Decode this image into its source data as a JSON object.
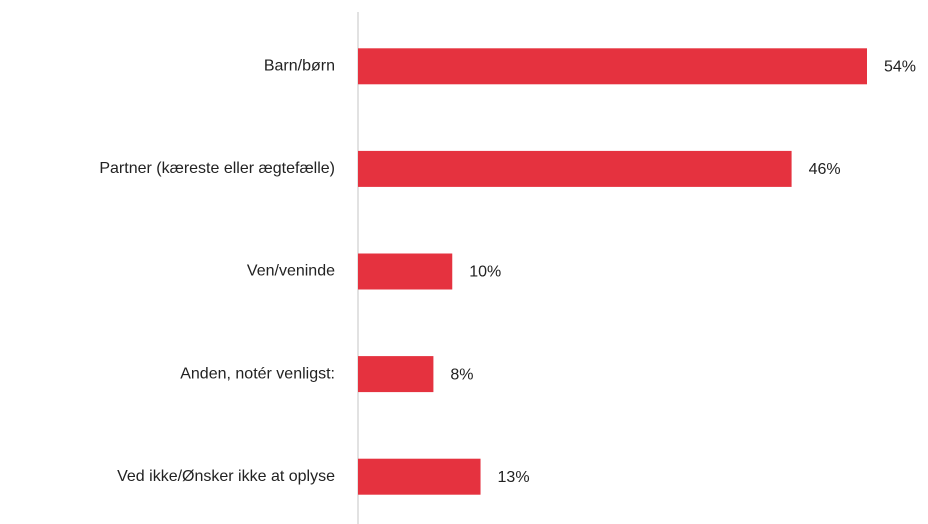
{
  "chart_data": {
    "type": "hbar",
    "categories": [
      "Barn/børn",
      "Partner (kæreste eller ægtefælle)",
      "Ven/veninde",
      "Anden, notér venligst:",
      "Ved ikke/Ønsker ikke at oplyse"
    ],
    "values": [
      54,
      46,
      10,
      8,
      13
    ],
    "value_labels": [
      "54%",
      "46%",
      "10%",
      "8%",
      "13%"
    ],
    "color": "#e5323f"
  }
}
